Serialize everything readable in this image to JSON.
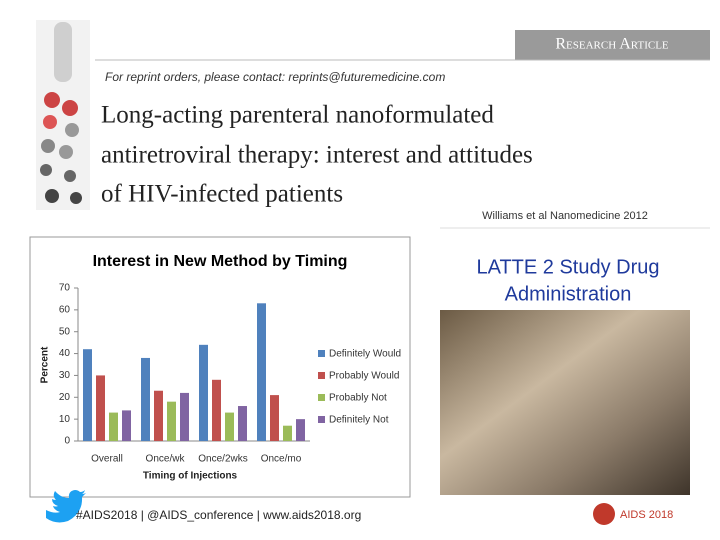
{
  "header": {
    "label": "Research Article",
    "reprint_note": "For reprint orders, please contact: reprints@futuremedicine.com",
    "title_lines": [
      "Long-acting parenteral nanoformulated",
      "antiretroviral therapy: interest and attitudes",
      "of HIV-infected patients"
    ],
    "citation": "Williams et al Nanomedicine 2012"
  },
  "side": {
    "heading_lines": [
      "LATTE 2 Study Drug",
      "Administration"
    ]
  },
  "footer": {
    "text": "#AIDS2018 | @AIDS_conference | www.aids2018.org",
    "logo": "AIDS 2018"
  },
  "chart_data": {
    "type": "bar",
    "title": "Interest in New Method by Timing",
    "x_label": "Timing of Injections",
    "y_label": "Percent",
    "categories": [
      "Overall",
      "Once/wk",
      "Once/2wks",
      "Once/mo"
    ],
    "series": [
      {
        "name": "Definitely Would",
        "color": "#4f81bd",
        "values": [
          42,
          38,
          44,
          63
        ]
      },
      {
        "name": "Probably Would",
        "color": "#c0504d",
        "values": [
          30,
          23,
          28,
          21
        ]
      },
      {
        "name": "Probably Not",
        "color": "#9bbb59",
        "values": [
          13,
          18,
          13,
          7
        ]
      },
      {
        "name": "Definitely Not",
        "color": "#8064a2",
        "values": [
          14,
          22,
          16,
          10
        ]
      }
    ],
    "ylim": [
      0,
      70
    ],
    "yticks": [
      0,
      10,
      20,
      30,
      40,
      50,
      60,
      70
    ],
    "grid": false,
    "legend": "right"
  }
}
